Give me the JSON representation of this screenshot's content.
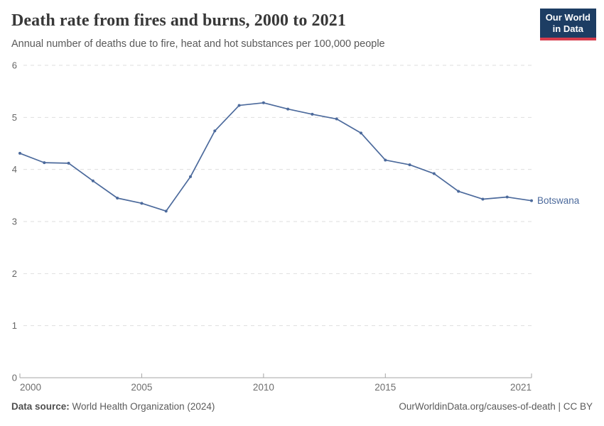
{
  "header": {
    "title": "Death rate from fires and burns, 2000 to 2021",
    "subtitle": "Annual number of deaths due to fire, heat and hot substances per 100,000 people"
  },
  "logo": {
    "line1": "Our World",
    "line2": "in Data",
    "bg_color": "#1d3d63",
    "accent_color": "#d73c4c"
  },
  "chart_data": {
    "type": "line",
    "title": "Death rate from fires and burns, 2000 to 2021",
    "x": [
      2000,
      2001,
      2002,
      2003,
      2004,
      2005,
      2006,
      2007,
      2008,
      2009,
      2010,
      2011,
      2012,
      2013,
      2014,
      2015,
      2016,
      2017,
      2018,
      2019,
      2020,
      2021
    ],
    "series": [
      {
        "name": "Botswana",
        "color": "#4C6A9C",
        "values": [
          4.31,
          4.13,
          4.12,
          3.78,
          3.45,
          3.35,
          3.2,
          3.86,
          4.74,
          5.23,
          5.28,
          5.16,
          5.06,
          4.97,
          4.7,
          4.18,
          4.09,
          3.92,
          3.58,
          3.43,
          3.47,
          3.4
        ]
      }
    ],
    "xlabel": "",
    "ylabel": "",
    "ylim": [
      0,
      6
    ],
    "yticks": [
      0,
      1,
      2,
      3,
      4,
      5,
      6
    ],
    "xticks": [
      2000,
      2005,
      2010,
      2015,
      2021
    ],
    "grid": "horizontal-dashed",
    "legend": "end-of-line-label"
  },
  "colors": {
    "line": "#4C6A9C",
    "grid": "#dedede",
    "axis": "#a5a5a5",
    "tick_text": "#6e6e6e"
  },
  "footer": {
    "source_label": "Data source:",
    "source_value": "World Health Organization (2024)",
    "link": "OurWorldinData.org/causes-of-death | CC BY"
  }
}
